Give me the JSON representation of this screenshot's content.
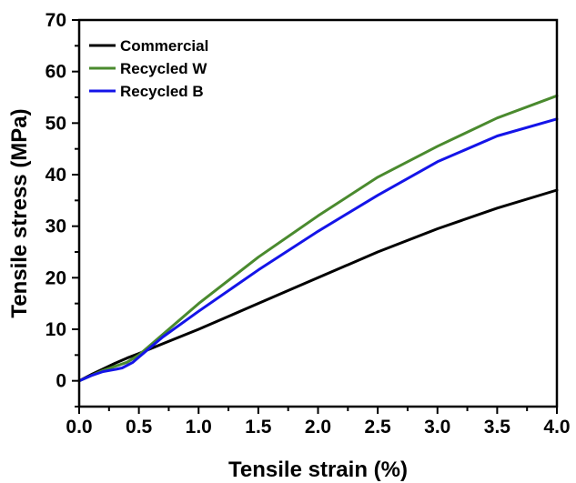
{
  "chart_data": {
    "type": "line",
    "title": "",
    "xlabel": "Tensile strain (%)",
    "ylabel": "Tensile stress (MPa)",
    "xlim": [
      0,
      4.0
    ],
    "ylim": [
      -5,
      70
    ],
    "xticks": [
      "0.0",
      "0.5",
      "1.0",
      "1.5",
      "2.0",
      "2.5",
      "3.0",
      "3.5",
      "4.0"
    ],
    "yticks": [
      "0",
      "10",
      "20",
      "30",
      "40",
      "50",
      "60",
      "70"
    ],
    "grid": false,
    "legend_position": "top-left",
    "series": [
      {
        "name": "Commercial",
        "color": "#000000",
        "x": [
          0,
          0.1,
          0.2,
          0.3,
          0.4,
          0.5,
          0.7,
          1.0,
          1.4,
          1.7,
          2.0,
          2.5,
          3.0,
          3.5,
          4.0
        ],
        "y": [
          0,
          1.2,
          2.3,
          3.4,
          4.4,
          5.3,
          7.2,
          10.0,
          14.0,
          17.0,
          20.0,
          25.0,
          29.5,
          33.5,
          37.0
        ]
      },
      {
        "name": "Recycled W",
        "color": "#4a8a2e",
        "x": [
          0,
          0.1,
          0.2,
          0.3,
          0.4,
          0.5,
          0.7,
          1.0,
          1.5,
          2.0,
          2.5,
          3.0,
          3.5,
          4.0
        ],
        "y": [
          0,
          1.0,
          2.0,
          2.8,
          3.6,
          5.0,
          9.0,
          15.0,
          24.0,
          32.0,
          39.5,
          45.5,
          51.0,
          55.3
        ]
      },
      {
        "name": "Recycled B",
        "color": "#1414e8",
        "x": [
          0,
          0.1,
          0.2,
          0.3,
          0.36,
          0.45,
          0.5,
          0.7,
          1.0,
          1.5,
          2.0,
          2.5,
          3.0,
          3.5,
          4.0
        ],
        "y": [
          0,
          1.0,
          1.8,
          2.2,
          2.5,
          3.6,
          4.6,
          8.5,
          13.5,
          21.5,
          29.0,
          36.0,
          42.5,
          47.5,
          50.8
        ]
      }
    ]
  }
}
